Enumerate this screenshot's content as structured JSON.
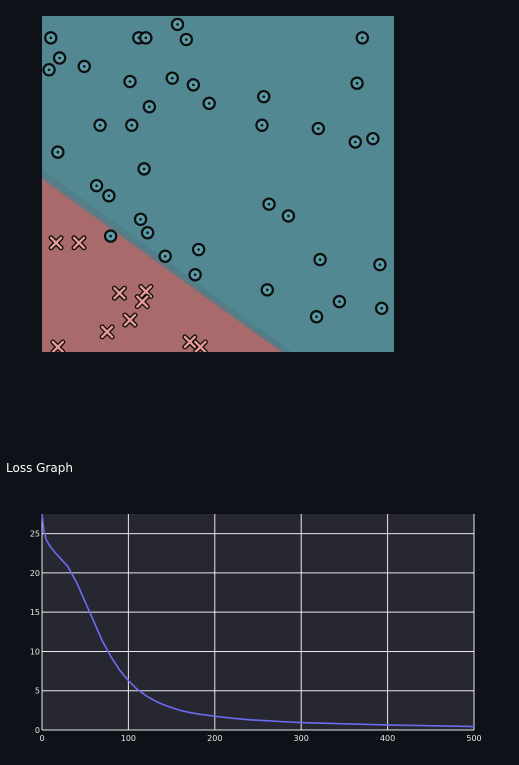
{
  "colors": {
    "page_bg": "#0e1117",
    "region_positive": "#528892",
    "region_negative": "#a86a6a",
    "circle_marker": "#5c9ba6",
    "cross_marker": "#e89a93",
    "marker_stroke": "#0e0e0e",
    "plot_bg": "#262730",
    "grid": "#ffffff",
    "line": "#6c6cf3",
    "tick_text": "#e8e8e8"
  },
  "loss_section": {
    "title": "Loss Graph"
  },
  "chart_data": [
    {
      "type": "scatter",
      "title": "",
      "xlabel": "",
      "ylabel": "",
      "xlim": [
        0,
        10
      ],
      "ylim": [
        0,
        10
      ],
      "grid": false,
      "decision_boundary": {
        "description_of_line": "boundary from left edge to bottom edge",
        "from": [
          0,
          5.15
        ],
        "to": [
          6.8,
          0
        ]
      },
      "series": [
        {
          "marker": "circle",
          "points": [
            [
              0.25,
              9.35
            ],
            [
              0.5,
              8.75
            ],
            [
              0.2,
              8.4
            ],
            [
              1.2,
              8.5
            ],
            [
              2.75,
              9.35
            ],
            [
              2.95,
              9.35
            ],
            [
              3.85,
              9.75
            ],
            [
              4.1,
              9.3
            ],
            [
              9.1,
              9.35
            ],
            [
              2.5,
              8.05
            ],
            [
              3.7,
              8.15
            ],
            [
              4.3,
              7.95
            ],
            [
              4.75,
              7.4
            ],
            [
              6.3,
              7.6
            ],
            [
              8.95,
              8.0
            ],
            [
              3.05,
              7.3
            ],
            [
              1.65,
              6.75
            ],
            [
              2.55,
              6.75
            ],
            [
              6.25,
              6.75
            ],
            [
              7.85,
              6.65
            ],
            [
              8.9,
              6.25
            ],
            [
              9.4,
              6.35
            ],
            [
              0.45,
              5.95
            ],
            [
              2.9,
              5.45
            ],
            [
              1.55,
              4.95
            ],
            [
              1.9,
              4.65
            ],
            [
              6.45,
              4.4
            ],
            [
              7.0,
              4.05
            ],
            [
              2.8,
              3.95
            ],
            [
              3.0,
              3.55
            ],
            [
              1.95,
              3.45
            ],
            [
              4.45,
              3.05
            ],
            [
              3.5,
              2.85
            ],
            [
              7.9,
              2.75
            ],
            [
              9.6,
              2.6
            ],
            [
              4.35,
              2.3
            ],
            [
              6.4,
              1.85
            ],
            [
              8.45,
              1.5
            ],
            [
              7.8,
              1.05
            ],
            [
              9.65,
              1.3
            ]
          ]
        },
        {
          "marker": "cross",
          "points": [
            [
              0.4,
              3.25
            ],
            [
              1.05,
              3.25
            ],
            [
              2.2,
              1.75
            ],
            [
              2.95,
              1.8
            ],
            [
              2.85,
              1.5
            ],
            [
              2.5,
              0.95
            ],
            [
              1.85,
              0.6
            ],
            [
              4.2,
              0.3
            ],
            [
              4.5,
              0.15
            ],
            [
              0.45,
              0.15
            ]
          ]
        }
      ]
    },
    {
      "type": "line",
      "title": "",
      "xlabel": "",
      "ylabel": "",
      "xlim": [
        0,
        500
      ],
      "ylim": [
        0,
        27.5
      ],
      "grid": true,
      "x_ticks": [
        "0",
        "100",
        "200",
        "300",
        "400",
        "500"
      ],
      "y_ticks": [
        "0",
        "5",
        "10",
        "15",
        "20",
        "25"
      ],
      "series": [
        {
          "x": [
            0,
            2,
            5,
            10,
            15,
            20,
            30,
            40,
            50,
            60,
            70,
            80,
            90,
            100,
            110,
            120,
            130,
            140,
            150,
            160,
            170,
            180,
            200,
            220,
            240,
            260,
            280,
            300,
            320,
            340,
            360,
            380,
            400,
            420,
            440,
            460,
            480,
            500
          ],
          "y": [
            27.5,
            25.5,
            24.2,
            23.3,
            22.6,
            22.0,
            20.8,
            18.8,
            16.3,
            13.8,
            11.3,
            9.3,
            7.6,
            6.3,
            5.2,
            4.4,
            3.75,
            3.25,
            2.85,
            2.5,
            2.25,
            2.05,
            1.75,
            1.5,
            1.3,
            1.18,
            1.05,
            0.95,
            0.88,
            0.82,
            0.76,
            0.7,
            0.64,
            0.6,
            0.56,
            0.52,
            0.48,
            0.44
          ]
        }
      ]
    }
  ]
}
